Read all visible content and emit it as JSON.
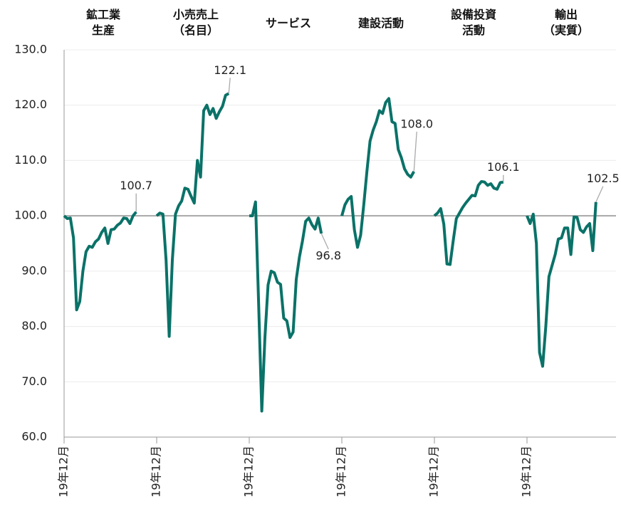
{
  "chart_data": {
    "type": "line",
    "ylim": [
      60,
      130
    ],
    "yticks": [
      {
        "value": 60,
        "label": "60.0"
      },
      {
        "value": 70,
        "label": "70.0"
      },
      {
        "value": 80,
        "label": "80.0"
      },
      {
        "value": 90,
        "label": "90.0"
      },
      {
        "value": 100,
        "label": "100.0"
      },
      {
        "value": 110,
        "label": "110.0"
      },
      {
        "value": 120,
        "label": "120.0"
      },
      {
        "value": 130,
        "label": "130.0"
      }
    ],
    "grid": true,
    "hline": 100,
    "series": [
      {
        "name": "鉱工業\n生産",
        "color": "#0a7268",
        "start_label": "19年12月",
        "end_label": "100.7",
        "values": [
          100,
          99.5,
          99.6,
          96,
          83,
          84.5,
          90,
          93.5,
          94.5,
          94.3,
          95.3,
          95.8,
          97,
          97.8,
          95,
          97.5,
          97.6,
          98.3,
          98.7,
          99.6,
          99.5,
          98.6,
          100,
          100.7
        ]
      },
      {
        "name": "小売売上\n（名目）",
        "color": "#0a7268",
        "start_label": "19年12月",
        "end_label": "122.1",
        "values": [
          100,
          100.5,
          100.3,
          92,
          78.2,
          92,
          100.3,
          101.8,
          102.7,
          105,
          104.8,
          103.5,
          102.3,
          110,
          107,
          119,
          120,
          118.3,
          119.4,
          117.6,
          118.8,
          119.8,
          121.8,
          122.1
        ]
      },
      {
        "name": "サービス",
        "color": "#0a7268",
        "start_label": "19年12月",
        "end_label": "96.8",
        "values": [
          100,
          100,
          102.5,
          84,
          64.7,
          78,
          87.5,
          90,
          89.7,
          88,
          87.6,
          81.5,
          81,
          78,
          79,
          88.5,
          92.5,
          95.5,
          99,
          99.6,
          98.4,
          97.6,
          99.6,
          96.8
        ]
      },
      {
        "name": "建設活動",
        "color": "#0a7268",
        "start_label": "19年12月",
        "end_label": "108.0",
        "values": [
          100,
          102,
          103,
          103.5,
          97.5,
          94.3,
          96.5,
          102,
          108,
          113.5,
          115.5,
          117,
          119,
          118.5,
          120.5,
          121.2,
          117,
          116.7,
          112,
          110.5,
          108.5,
          107.5,
          107,
          108
        ]
      },
      {
        "name": "設備投資\n活動",
        "color": "#0a7268",
        "start_label": "19年12月",
        "end_label": "106.1",
        "values": [
          100,
          100.5,
          101.3,
          98.5,
          91.3,
          91.2,
          95.5,
          99.5,
          100.5,
          101.5,
          102.3,
          103,
          103.7,
          103.6,
          105.5,
          106.2,
          106.1,
          105.5,
          105.8,
          105,
          104.8,
          106,
          106.1
        ]
      },
      {
        "name": "輸出\n（実質）",
        "color": "#0a7268",
        "start_label": "19年12月",
        "end_label": "102.5",
        "values": [
          100,
          98.6,
          100.3,
          95,
          75.3,
          72.8,
          80,
          89,
          91,
          93,
          95.8,
          96,
          97.8,
          97.8,
          93,
          99.8,
          99.7,
          97.5,
          97,
          98,
          98.6,
          93.7,
          102.5
        ]
      }
    ]
  }
}
